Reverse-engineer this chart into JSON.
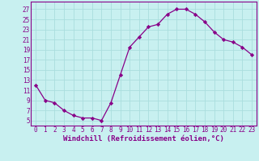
{
  "x": [
    0,
    1,
    2,
    3,
    4,
    5,
    6,
    7,
    8,
    9,
    10,
    11,
    12,
    13,
    14,
    15,
    16,
    17,
    18,
    19,
    20,
    21,
    22,
    23
  ],
  "y": [
    12,
    9,
    8.5,
    7,
    6,
    5.5,
    5.5,
    5,
    8.5,
    14,
    19.5,
    21.5,
    23.5,
    24,
    26,
    27,
    27,
    26,
    24.5,
    22.5,
    21,
    20.5,
    19.5,
    18
  ],
  "line_color": "#880088",
  "marker": "D",
  "marker_size": 2.2,
  "background_color": "#c8f0f0",
  "grid_color": "#aadddd",
  "xlabel": "Windchill (Refroidissement éolien,°C)",
  "xlabel_fontsize": 6.5,
  "ytick_labels": [
    "5",
    "7",
    "9",
    "11",
    "13",
    "15",
    "17",
    "19",
    "21",
    "23",
    "25",
    "27"
  ],
  "ytick_values": [
    5,
    7,
    9,
    11,
    13,
    15,
    17,
    19,
    21,
    23,
    25,
    27
  ],
  "xtick_values": [
    0,
    1,
    2,
    3,
    4,
    5,
    6,
    7,
    8,
    9,
    10,
    11,
    12,
    13,
    14,
    15,
    16,
    17,
    18,
    19,
    20,
    21,
    22,
    23
  ],
  "xtick_labels": [
    "0",
    "1",
    "2",
    "3",
    "4",
    "5",
    "6",
    "7",
    "8",
    "9",
    "10",
    "11",
    "12",
    "13",
    "14",
    "15",
    "16",
    "17",
    "18",
    "19",
    "20",
    "21",
    "22",
    "23"
  ],
  "xlim": [
    -0.5,
    23.5
  ],
  "ylim": [
    4,
    28.5
  ],
  "spine_color": "#880088",
  "tick_fontsize": 5.5,
  "tick_color": "#880088",
  "linewidth": 0.9
}
